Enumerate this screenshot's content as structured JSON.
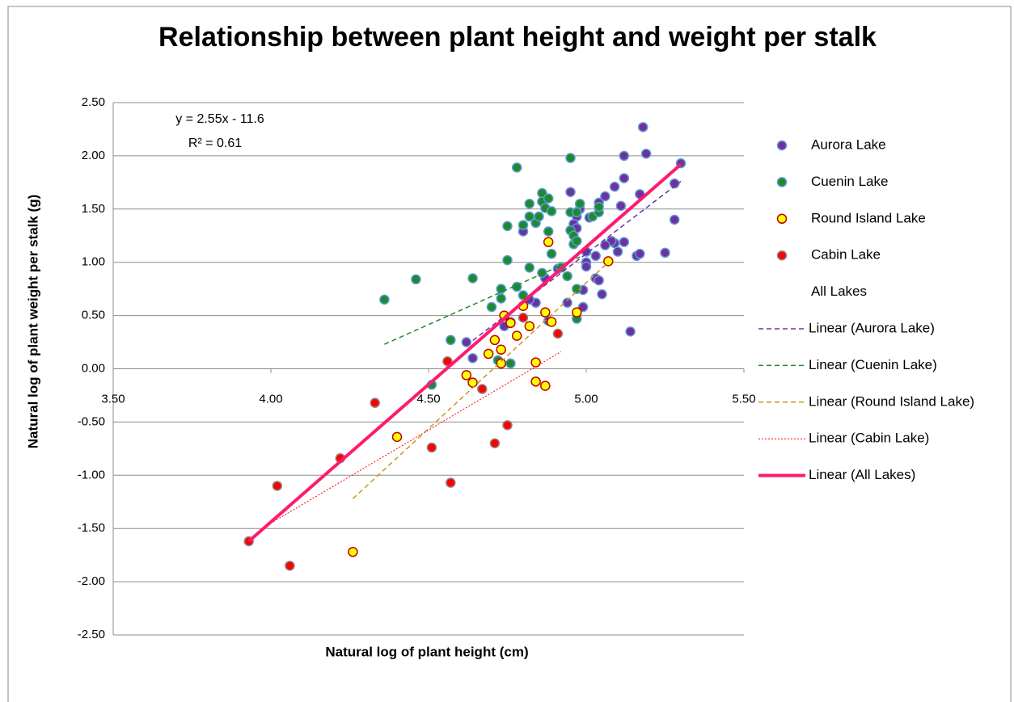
{
  "chart_data": {
    "type": "scatter",
    "title": "Relationship between plant height and weight per stalk",
    "xlabel": "Natural log of plant height (cm)",
    "ylabel": "Natural log of plant weight per stalk (g)",
    "annotations": [
      "y = 2.55x - 11.6",
      "R² = 0.61"
    ],
    "xlim": [
      3.5,
      5.5
    ],
    "ylim": [
      -2.5,
      2.5
    ],
    "xticks": [
      {
        "value": 3.5,
        "label": "3.50"
      },
      {
        "value": 4,
        "label": "4.00"
      },
      {
        "value": 4.5,
        "label": "4.50"
      },
      {
        "value": 5,
        "label": "5.00"
      },
      {
        "value": 5.5,
        "label": "5.50"
      }
    ],
    "yticks": [
      {
        "value": 2.5,
        "label": "2.50"
      },
      {
        "value": 2,
        "label": "2.00"
      },
      {
        "value": 1.5,
        "label": "1.50"
      },
      {
        "value": 1,
        "label": "1.00"
      },
      {
        "value": 0.5,
        "label": "0.50"
      },
      {
        "value": 0,
        "label": "0.00"
      },
      {
        "value": -0.5,
        "label": "-0.50"
      },
      {
        "value": -1,
        "label": "-1.00"
      },
      {
        "value": -1.5,
        "label": "-1.50"
      },
      {
        "value": -2,
        "label": "-2.00"
      },
      {
        "value": -2.5,
        "label": "-2.50"
      }
    ],
    "grid": true,
    "legend": "right",
    "series": [
      {
        "name": "Aurora Lake",
        "color": "#7030a0",
        "edgecolor": "#5b9bd5",
        "x": [
          5.18,
          5.19,
          5.12,
          5.3,
          5.12,
          5.28,
          5.09,
          4.95,
          5.17,
          5.06,
          5.04,
          5.11,
          4.98,
          4.97,
          5.01,
          4.96,
          4.97,
          5.28,
          4.8,
          5.09,
          5.12,
          5.08,
          5.06,
          5.03,
          5.0,
          5.16,
          5.17,
          5.25,
          5.1,
          5.0,
          5.0,
          5.03,
          5.04,
          4.87,
          4.91,
          4.99,
          5.05,
          4.84,
          4.99,
          4.94,
          4.88,
          4.76,
          4.74,
          4.62,
          4.64,
          5.14,
          4.82
        ],
        "y": [
          2.27,
          2.02,
          2.0,
          1.93,
          1.79,
          1.74,
          1.71,
          1.66,
          1.64,
          1.62,
          1.56,
          1.53,
          1.5,
          1.43,
          1.42,
          1.36,
          1.32,
          1.4,
          1.29,
          1.18,
          1.19,
          1.2,
          1.16,
          1.06,
          1.1,
          1.06,
          1.08,
          1.09,
          1.1,
          1.0,
          0.96,
          0.85,
          0.83,
          0.85,
          0.94,
          0.74,
          0.7,
          0.62,
          0.58,
          0.62,
          0.45,
          0.44,
          0.4,
          0.25,
          0.1,
          0.35,
          0.65
        ]
      },
      {
        "name": "Cuenin Lake",
        "color": "#1e8a2e",
        "edgecolor": "#5b9bd5",
        "x": [
          4.36,
          4.46,
          4.51,
          4.57,
          4.64,
          4.7,
          4.73,
          4.73,
          4.75,
          4.75,
          4.78,
          4.78,
          4.8,
          4.8,
          4.82,
          4.82,
          4.82,
          4.84,
          4.85,
          4.86,
          4.86,
          4.87,
          4.88,
          4.88,
          4.89,
          4.89,
          4.86,
          4.95,
          4.95,
          4.95,
          4.96,
          4.96,
          4.97,
          4.98,
          4.97,
          4.97,
          4.97,
          5.02,
          5.04,
          5.04,
          4.76,
          4.72,
          4.92,
          4.94
        ],
        "y": [
          0.65,
          0.84,
          -0.15,
          0.27,
          0.85,
          0.58,
          0.75,
          0.66,
          1.02,
          1.34,
          1.89,
          0.77,
          1.35,
          0.69,
          1.55,
          1.43,
          0.95,
          1.37,
          1.43,
          1.65,
          1.57,
          1.51,
          1.6,
          1.29,
          1.48,
          1.08,
          0.9,
          1.98,
          1.47,
          1.3,
          1.25,
          1.17,
          1.2,
          1.55,
          1.47,
          0.47,
          0.75,
          1.43,
          1.47,
          1.52,
          0.05,
          0.08,
          0.95,
          0.87
        ]
      },
      {
        "name": "Round Island Lake",
        "color": "#ffff00",
        "edgecolor": "#c00000",
        "x": [
          4.26,
          4.4,
          4.62,
          4.64,
          4.69,
          4.71,
          4.73,
          4.73,
          4.74,
          4.76,
          4.78,
          4.8,
          4.82,
          4.84,
          4.84,
          4.87,
          4.87,
          4.88,
          4.89,
          4.97,
          5.07
        ],
        "y": [
          -1.72,
          -0.64,
          -0.06,
          -0.13,
          0.14,
          0.27,
          0.18,
          0.05,
          0.5,
          0.43,
          0.31,
          0.59,
          0.4,
          0.06,
          -0.12,
          0.53,
          -0.16,
          1.19,
          0.44,
          0.53,
          1.01
        ]
      },
      {
        "name": "Cabin Lake",
        "color": "#ff0000",
        "edgecolor": "#8a8a8a",
        "x": [
          3.93,
          4.02,
          4.06,
          4.22,
          4.33,
          4.51,
          4.56,
          4.57,
          4.67,
          4.71,
          4.75,
          4.8,
          4.91
        ],
        "y": [
          -1.62,
          -1.1,
          -1.85,
          -0.84,
          -0.32,
          -0.74,
          0.07,
          -1.07,
          -0.19,
          -0.7,
          -0.53,
          0.48,
          0.33
        ]
      },
      {
        "name": "All Lakes",
        "color": "none",
        "edgecolor": "none",
        "x": [],
        "y": []
      }
    ],
    "trendlines": [
      {
        "name": "Linear (Aurora Lake)",
        "color": "#7030a0",
        "style": "dashed",
        "width": 1.5,
        "x": [
          4.62,
          5.3
        ],
        "y": [
          0.22,
          1.76
        ]
      },
      {
        "name": "Linear (Cuenin Lake)",
        "color": "#1e8a2e",
        "style": "dashed",
        "width": 1.5,
        "x": [
          4.36,
          4.98
        ],
        "y": [
          0.23,
          1.05
        ]
      },
      {
        "name": "Linear (Round Island Lake)",
        "color": "#c8961e",
        "style": "dashed",
        "width": 1.5,
        "x": [
          4.26,
          5.07
        ],
        "y": [
          -1.22,
          1.0
        ]
      },
      {
        "name": "Linear (Cabin Lake)",
        "color": "#ff0000",
        "style": "dotted",
        "width": 1,
        "x": [
          4.0,
          4.92
        ],
        "y": [
          -1.45,
          0.16
        ]
      },
      {
        "name": "Linear (All Lakes)",
        "color": "#ff1a6e",
        "style": "solid",
        "width": 4,
        "x": [
          3.93,
          5.3
        ],
        "y": [
          -1.62,
          1.92
        ]
      }
    ]
  }
}
